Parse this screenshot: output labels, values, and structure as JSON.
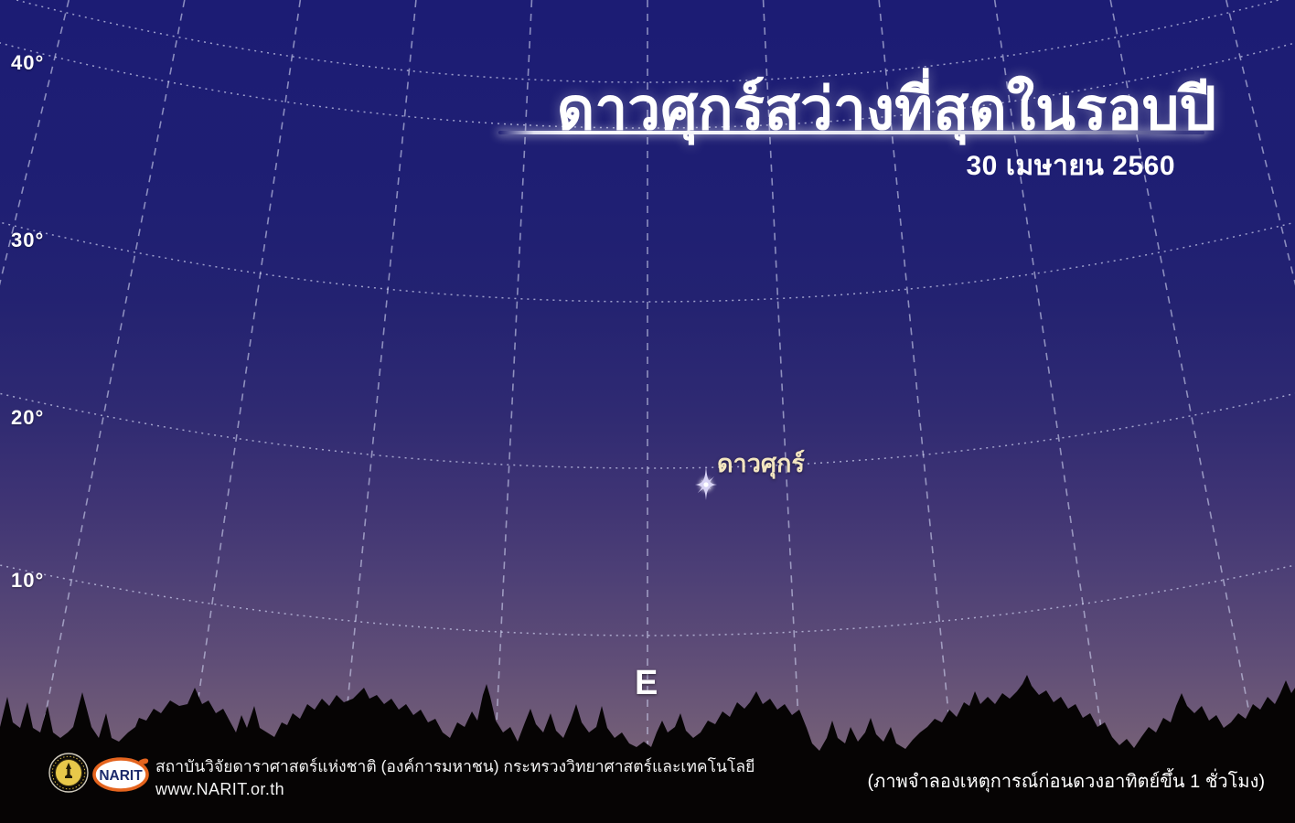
{
  "header": {
    "title": "ดาวศุกร์สว่างที่สุดในรอบปี",
    "date": "30 เมษายน 2560"
  },
  "sky": {
    "altitude_labels": [
      {
        "text": "40°"
      },
      {
        "text": "30°"
      },
      {
        "text": "20°"
      },
      {
        "text": "10°"
      }
    ],
    "venus": {
      "label": "ดาวศุกร์"
    },
    "compass_east": "E"
  },
  "footer": {
    "org_line": "สถาบันวิจัยดาราศาสตร์แห่งชาติ (องค์การมหาชน) กระทรวงวิทยาศาสตร์และเทคโนโลยี",
    "website": "www.NARIT.or.th",
    "narit_logo_text": "NARIT",
    "simulation_note": "(ภาพจำลองเหตุการณ์ก่อนดวงอาทิตย์ขึ้น 1 ชั่วโมง)"
  },
  "colors": {
    "sky_top": "#1c1c74",
    "sky_horizon": "#826e79",
    "grid_line": "#cdd0ee",
    "venus_label": "#f3e6c0",
    "silhouette": "#060404",
    "narit_orange": "#e4641e",
    "narit_navy": "#1c2a6b",
    "seal_gold": "#e8c84a"
  }
}
